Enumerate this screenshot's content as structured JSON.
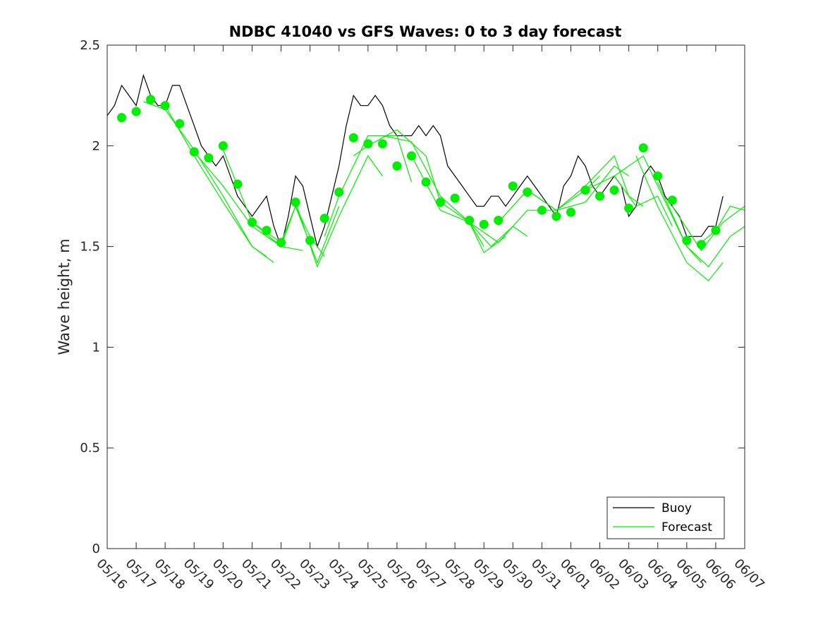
{
  "chart_data": {
    "type": "line",
    "title": "NDBC 41040 vs GFS Waves: 0 to 3 day forecast",
    "xlabel": "",
    "ylabel": "Wave height, m",
    "xlim": [
      "05/16",
      "06/07"
    ],
    "ylim": [
      0,
      2.5
    ],
    "y_ticks": [
      "0",
      "0.5",
      "1",
      "1.5",
      "2",
      "2.5"
    ],
    "x_ticks": [
      "05/16",
      "05/17",
      "05/18",
      "05/19",
      "05/20",
      "05/21",
      "05/22",
      "05/23",
      "05/24",
      "05/25",
      "05/26",
      "05/27",
      "05/28",
      "05/29",
      "05/30",
      "05/31",
      "06/01",
      "06/02",
      "06/03",
      "06/04",
      "06/05",
      "06/06",
      "06/07"
    ],
    "grid": false,
    "legend_position": "bottom-right",
    "colors": {
      "buoy": "#000000",
      "forecast": "#00ee00"
    },
    "series": [
      {
        "name": "Buoy",
        "style": "line",
        "x": [
          "05/16 00:00",
          "05/16 06:00",
          "05/16 12:00",
          "05/16 18:00",
          "05/17 00:00",
          "05/17 06:00",
          "05/17 12:00",
          "05/17 18:00",
          "05/18 00:00",
          "05/18 06:00",
          "05/18 12:00",
          "05/18 18:00",
          "05/19 00:00",
          "05/19 06:00",
          "05/19 12:00",
          "05/19 18:00",
          "05/20 00:00",
          "05/20 06:00",
          "05/20 12:00",
          "05/20 18:00",
          "05/21 00:00",
          "05/21 06:00",
          "05/21 12:00",
          "05/21 18:00",
          "05/22 00:00",
          "05/22 06:00",
          "05/22 12:00",
          "05/22 18:00",
          "05/23 00:00",
          "05/23 06:00",
          "05/23 12:00",
          "05/23 18:00",
          "05/24 00:00",
          "05/24 06:00",
          "05/24 12:00",
          "05/24 18:00",
          "05/25 00:00",
          "05/25 06:00",
          "05/25 12:00",
          "05/25 18:00",
          "05/26 00:00",
          "05/26 06:00",
          "05/26 12:00",
          "05/26 18:00",
          "05/27 00:00",
          "05/27 06:00",
          "05/27 12:00",
          "05/27 18:00",
          "05/28 00:00",
          "05/28 06:00",
          "05/28 12:00",
          "05/28 18:00",
          "05/29 00:00",
          "05/29 06:00",
          "05/29 12:00",
          "05/29 18:00",
          "05/30 00:00",
          "05/30 06:00",
          "05/30 12:00",
          "05/30 18:00",
          "05/31 00:00",
          "05/31 06:00",
          "05/31 12:00",
          "05/31 18:00",
          "06/01 00:00",
          "06/01 06:00",
          "06/01 12:00",
          "06/01 18:00",
          "06/02 00:00",
          "06/02 06:00",
          "06/02 12:00",
          "06/02 18:00",
          "06/03 00:00",
          "06/03 06:00",
          "06/03 12:00",
          "06/03 18:00",
          "06/04 00:00",
          "06/04 06:00",
          "06/04 12:00",
          "06/04 18:00",
          "06/05 00:00",
          "06/05 06:00",
          "06/05 12:00",
          "06/05 18:00",
          "06/06 00:00",
          "06/06 06:00"
        ],
        "values": [
          2.15,
          2.2,
          2.3,
          2.25,
          2.2,
          2.35,
          2.25,
          2.2,
          2.2,
          2.3,
          2.3,
          2.2,
          2.1,
          2.0,
          1.95,
          1.9,
          1.95,
          1.85,
          1.75,
          1.7,
          1.65,
          1.7,
          1.75,
          1.6,
          1.5,
          1.65,
          1.85,
          1.8,
          1.65,
          1.5,
          1.6,
          1.75,
          1.9,
          2.1,
          2.25,
          2.2,
          2.2,
          2.25,
          2.2,
          2.1,
          2.05,
          2.05,
          2.05,
          2.1,
          2.05,
          2.1,
          2.05,
          1.9,
          1.85,
          1.8,
          1.75,
          1.7,
          1.7,
          1.75,
          1.75,
          1.7,
          1.75,
          1.8,
          1.85,
          1.8,
          1.75,
          1.7,
          1.65,
          1.8,
          1.85,
          1.95,
          1.9,
          1.8,
          1.75,
          1.8,
          1.85,
          1.8,
          1.65,
          1.7,
          1.85,
          1.9,
          1.85,
          1.75,
          1.7,
          1.65,
          1.55,
          1.55,
          1.55,
          1.6,
          1.6,
          1.75
        ]
      },
      {
        "name": "Forecast",
        "style": "line",
        "runs": [
          {
            "x": [
              "05/17 06:00",
              "05/18 00:00",
              "05/19 00:00",
              "05/20 00:00",
              "05/21 00:00",
              "05/21 12:00"
            ],
            "values": [
              2.22,
              2.18,
              1.98,
              1.75,
              1.5,
              1.45
            ]
          },
          {
            "x": [
              "05/18 00:00",
              "05/19 00:00",
              "05/20 00:00",
              "05/21 00:00",
              "05/21 18:00"
            ],
            "values": [
              2.2,
              1.95,
              1.72,
              1.5,
              1.42
            ]
          },
          {
            "x": [
              "05/19 00:00",
              "05/20 00:00",
              "05/21 00:00",
              "05/22 00:00",
              "05/22 18:00"
            ],
            "values": [
              1.97,
              1.8,
              1.6,
              1.5,
              1.48
            ]
          },
          {
            "x": [
              "05/20 00:00",
              "05/21 00:00",
              "05/22 00:00",
              "05/22 12:00",
              "05/23 00:00",
              "05/23 12:00"
            ],
            "values": [
              1.98,
              1.62,
              1.5,
              1.7,
              1.55,
              1.45
            ]
          },
          {
            "x": [
              "05/21 00:00",
              "05/22 00:00",
              "05/22 12:00",
              "05/23 06:00",
              "05/24 00:00"
            ],
            "values": [
              1.62,
              1.52,
              1.7,
              1.42,
              1.7
            ]
          },
          {
            "x": [
              "05/22 12:00",
              "05/23 06:00",
              "05/24 00:00",
              "05/25 00:00",
              "05/25 12:00"
            ],
            "values": [
              1.72,
              1.4,
              1.65,
              1.95,
              1.85
            ]
          },
          {
            "x": [
              "05/23 12:00",
              "05/24 00:00",
              "05/25 00:00",
              "05/26 00:00",
              "05/26 12:00"
            ],
            "values": [
              1.55,
              1.75,
              2.05,
              2.05,
              1.82
            ]
          },
          {
            "x": [
              "05/24 12:00",
              "05/25 00:00",
              "05/26 00:00",
              "05/27 00:00",
              "05/27 12:00"
            ],
            "values": [
              1.95,
              2.0,
              2.08,
              1.95,
              1.72
            ]
          },
          {
            "x": [
              "05/25 12:00",
              "05/26 12:00",
              "05/27 12:00",
              "05/28 12:00",
              "05/29 00:00"
            ],
            "values": [
              2.05,
              2.02,
              1.75,
              1.62,
              1.5
            ]
          },
          {
            "x": [
              "05/26 12:00",
              "05/27 12:00",
              "05/28 12:00",
              "05/29 00:00",
              "05/29 18:00"
            ],
            "values": [
              1.95,
              1.68,
              1.62,
              1.47,
              1.55
            ]
          },
          {
            "x": [
              "05/27 12:00",
              "05/28 12:00",
              "05/29 06:00",
              "05/30 00:00",
              "05/30 12:00"
            ],
            "values": [
              1.72,
              1.62,
              1.5,
              1.6,
              1.55
            ]
          },
          {
            "x": [
              "05/28 12:00",
              "05/29 12:00",
              "05/30 12:00",
              "05/31 12:00"
            ],
            "values": [
              1.62,
              1.52,
              1.68,
              1.68
            ]
          },
          {
            "x": [
              "05/29 12:00",
              "05/30 12:00",
              "05/31 12:00",
              "06/01 12:00",
              "06/02 00:00"
            ],
            "values": [
              1.62,
              1.78,
              1.68,
              1.78,
              1.85
            ]
          },
          {
            "x": [
              "05/30 12:00",
              "05/31 12:00",
              "06/01 12:00",
              "06/02 12:00",
              "06/03 00:00"
            ],
            "values": [
              1.78,
              1.68,
              1.72,
              1.9,
              1.85
            ]
          },
          {
            "x": [
              "05/31 12:00",
              "06/01 12:00",
              "06/02 12:00",
              "06/03 00:00",
              "06/03 12:00"
            ],
            "values": [
              1.68,
              1.8,
              1.95,
              1.75,
              1.7
            ]
          },
          {
            "x": [
              "06/01 12:00",
              "06/02 12:00",
              "06/03 06:00",
              "06/04 00:00",
              "06/04 12:00"
            ],
            "values": [
              1.78,
              1.85,
              1.7,
              1.75,
              1.6
            ]
          },
          {
            "x": [
              "06/02 12:00",
              "06/03 12:00",
              "06/04 00:00",
              "06/05 00:00",
              "06/05 12:00"
            ],
            "values": [
              1.85,
              1.95,
              1.8,
              1.5,
              1.42
            ]
          },
          {
            "x": [
              "06/03 06:00",
              "06/04 00:00",
              "06/05 00:00",
              "06/05 18:00",
              "06/06 06:00"
            ],
            "values": [
              1.95,
              1.7,
              1.42,
              1.33,
              1.42
            ]
          },
          {
            "x": [
              "06/04 00:00",
              "06/05 00:00",
              "06/05 18:00",
              "06/06 12:00",
              "06/07 00:00"
            ],
            "values": [
              1.82,
              1.5,
              1.4,
              1.55,
              1.6
            ]
          },
          {
            "x": [
              "06/04 12:00",
              "06/05 12:00",
              "06/06 06:00",
              "06/07 00:00"
            ],
            "values": [
              1.7,
              1.48,
              1.62,
              1.7
            ]
          },
          {
            "x": [
              "06/05 12:00",
              "06/06 00:00",
              "06/06 12:00",
              "06/07 00:00"
            ],
            "values": [
              1.52,
              1.58,
              1.7,
              1.68
            ]
          }
        ]
      },
      {
        "name": "",
        "style": "markers",
        "x": [
          "05/16 12:00",
          "05/17 00:00",
          "05/17 12:00",
          "05/18 00:00",
          "05/18 12:00",
          "05/19 00:00",
          "05/19 12:00",
          "05/20 00:00",
          "05/20 12:00",
          "05/21 00:00",
          "05/21 12:00",
          "05/22 00:00",
          "05/22 12:00",
          "05/23 00:00",
          "05/23 12:00",
          "05/24 00:00",
          "05/24 12:00",
          "05/25 00:00",
          "05/25 12:00",
          "05/26 00:00",
          "05/26 12:00",
          "05/27 00:00",
          "05/27 12:00",
          "05/28 00:00",
          "05/28 12:00",
          "05/29 00:00",
          "05/29 12:00",
          "05/30 00:00",
          "05/30 12:00",
          "05/31 00:00",
          "05/31 12:00",
          "06/01 00:00",
          "06/01 12:00",
          "06/02 00:00",
          "06/02 12:00",
          "06/03 00:00",
          "06/03 12:00",
          "06/04 00:00",
          "06/04 12:00",
          "06/05 00:00",
          "06/05 12:00",
          "06/06 00:00"
        ],
        "values": [
          2.14,
          2.17,
          2.23,
          2.2,
          2.11,
          1.97,
          1.94,
          2.0,
          1.81,
          1.62,
          1.58,
          1.52,
          1.72,
          1.53,
          1.64,
          1.77,
          2.04,
          2.01,
          2.01,
          1.9,
          1.95,
          1.82,
          1.72,
          1.74,
          1.63,
          1.61,
          1.63,
          1.8,
          1.77,
          1.68,
          1.65,
          1.67,
          1.78,
          1.75,
          1.78,
          1.69,
          1.99,
          1.85,
          1.73,
          1.53,
          1.51,
          1.58
        ]
      }
    ],
    "legend": [
      "Buoy",
      "Forecast"
    ]
  }
}
